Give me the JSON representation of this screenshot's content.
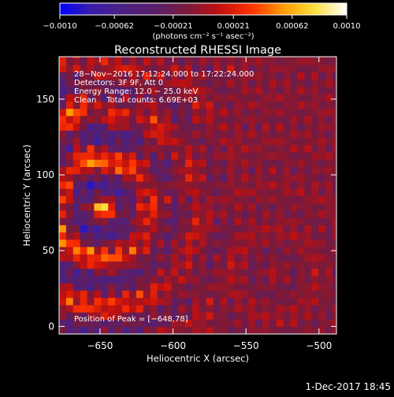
{
  "chart_data": {
    "type": "heatmap",
    "title": "Reconstructed RHESSI Image",
    "xlabel": "Heliocentric X (arcsec)",
    "ylabel": "Heliocentric Y (arcsec)",
    "xlim": [
      -678,
      -488
    ],
    "ylim": [
      -5,
      178
    ],
    "x_ticks": [
      -650,
      -600,
      -550,
      -500
    ],
    "x_tick_labels": [
      "−650",
      "−600",
      "−550",
      "−500"
    ],
    "y_ticks": [
      0,
      50,
      100,
      150
    ],
    "y_tick_labels": [
      "0",
      "50",
      "100",
      "150"
    ],
    "annotations": [
      "28−Nov−2016 17:12:24.000 to 17:22:24.000",
      "Detectors: 3F 9F, Att 0",
      "Energy Range: 12.0 − 25.0 keV",
      "Clean    Total counts: 6.69E+03"
    ],
    "peak_label": "Position of Peak = [−648,78]",
    "peak": {
      "x": -648,
      "y": 78
    },
    "colorbar": {
      "range": [
        -0.001,
        0.001
      ],
      "tick_values": [
        -0.001,
        -0.00062,
        -0.00021,
        0.00021,
        0.00062,
        0.001
      ],
      "tick_labels": [
        "−0.0010",
        "−0.00062",
        "−0.00021",
        "0.00021",
        "0.00062",
        "0.0010"
      ],
      "units_label": "(photons cm⁻² s⁻¹ asec⁻²)",
      "colors": [
        "#0000ff",
        "#3a1ea8",
        "#4b2080",
        "#5a1f6a",
        "#7a1a3a",
        "#c01010",
        "#ff3000",
        "#ff9a00",
        "#ffe040",
        "#ffffff"
      ]
    },
    "grid": false
  },
  "footer": {
    "timestamp": "1-Dec-2017 18:45"
  }
}
